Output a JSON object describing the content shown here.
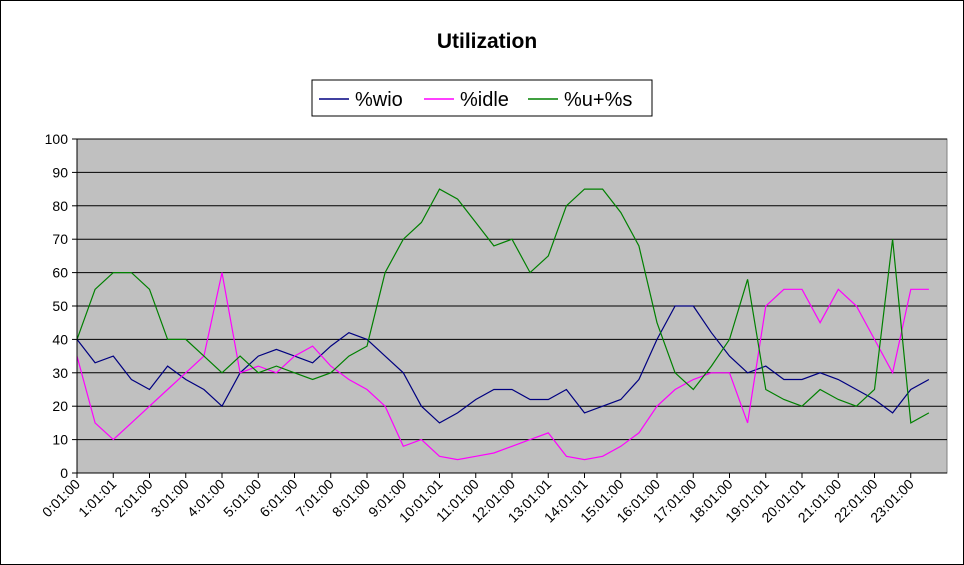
{
  "chart_data": {
    "type": "line",
    "title": "Utilization",
    "xlabel": "",
    "ylabel": "",
    "ylim": [
      0,
      100
    ],
    "yticks": [
      0,
      10,
      20,
      30,
      40,
      50,
      60,
      70,
      80,
      90,
      100
    ],
    "xticks": [
      "0:01:00",
      "1:01:01",
      "2:01:00",
      "3:01:00",
      "4:01:00",
      "5:01:00",
      "6:01:00",
      "7:01:00",
      "8:01:00",
      "9:01:00",
      "10:01:01",
      "11:01:00",
      "12:01:00",
      "13:01:01",
      "14:01:01",
      "15:01:00",
      "16:01:00",
      "17:01:00",
      "18:01:00",
      "19:01:01",
      "20:01:01",
      "21:01:00",
      "22:01:00",
      "23:01:00"
    ],
    "grid": true,
    "legend_position": "top-center",
    "plot_background": "#C0C0C0",
    "series": [
      {
        "name": "%wio",
        "color": "#000080",
        "x": [
          "0:01:00",
          "0:31:00",
          "1:01:01",
          "1:31:00",
          "2:01:00",
          "2:31:00",
          "3:01:00",
          "3:31:00",
          "4:01:00",
          "4:31:00",
          "5:01:00",
          "5:31:00",
          "6:01:00",
          "6:31:00",
          "7:01:00",
          "7:31:00",
          "8:01:00",
          "8:31:00",
          "9:01:00",
          "9:31:00",
          "10:01:01",
          "10:31:00",
          "11:01:00",
          "11:31:00",
          "12:01:00",
          "12:31:00",
          "13:01:01",
          "13:31:00",
          "14:01:01",
          "14:31:00",
          "15:01:00",
          "15:31:00",
          "16:01:00",
          "16:31:00",
          "17:01:00",
          "17:31:00",
          "18:01:00",
          "18:31:00",
          "19:01:01",
          "19:31:00",
          "20:01:01",
          "20:31:00",
          "21:01:00",
          "21:31:00",
          "22:01:00",
          "22:31:00",
          "23:01:00",
          "23:31:00"
        ],
        "values": [
          40,
          33,
          35,
          28,
          25,
          32,
          28,
          25,
          20,
          30,
          35,
          37,
          35,
          33,
          38,
          42,
          40,
          35,
          30,
          20,
          15,
          18,
          22,
          25,
          25,
          22,
          22,
          25,
          18,
          20,
          22,
          28,
          40,
          50,
          50,
          42,
          35,
          30,
          32,
          28,
          28,
          30,
          28,
          25,
          22,
          18,
          25,
          28
        ]
      },
      {
        "name": "%idle",
        "color": "#FF00FF",
        "x": [
          "0:01:00",
          "0:31:00",
          "1:01:01",
          "1:31:00",
          "2:01:00",
          "2:31:00",
          "3:01:00",
          "3:31:00",
          "4:01:00",
          "4:31:00",
          "5:01:00",
          "5:31:00",
          "6:01:00",
          "6:31:00",
          "7:01:00",
          "7:31:00",
          "8:01:00",
          "8:31:00",
          "9:01:00",
          "9:31:00",
          "10:01:01",
          "10:31:00",
          "11:01:00",
          "11:31:00",
          "12:01:00",
          "12:31:00",
          "13:01:01",
          "13:31:00",
          "14:01:01",
          "14:31:00",
          "15:01:00",
          "15:31:00",
          "16:01:00",
          "16:31:00",
          "17:01:00",
          "17:31:00",
          "18:01:00",
          "18:31:00",
          "19:01:01",
          "19:31:00",
          "20:01:01",
          "20:31:00",
          "21:01:00",
          "21:31:00",
          "22:01:00",
          "22:31:00",
          "23:01:00",
          "23:31:00"
        ],
        "values": [
          35,
          15,
          10,
          15,
          20,
          25,
          30,
          35,
          60,
          30,
          32,
          30,
          35,
          38,
          32,
          28,
          25,
          20,
          8,
          10,
          5,
          4,
          5,
          6,
          8,
          10,
          12,
          5,
          4,
          5,
          8,
          12,
          20,
          25,
          28,
          30,
          30,
          15,
          50,
          55,
          55,
          45,
          55,
          50,
          40,
          30,
          55,
          55
        ]
      },
      {
        "name": "%u+%s",
        "color": "#008000",
        "x": [
          "0:01:00",
          "0:31:00",
          "1:01:01",
          "1:31:00",
          "2:01:00",
          "2:31:00",
          "3:01:00",
          "3:31:00",
          "4:01:00",
          "4:31:00",
          "5:01:00",
          "5:31:00",
          "6:01:00",
          "6:31:00",
          "7:01:00",
          "7:31:00",
          "8:01:00",
          "8:31:00",
          "9:01:00",
          "9:31:00",
          "10:01:01",
          "10:31:00",
          "11:01:00",
          "11:31:00",
          "12:01:00",
          "12:31:00",
          "13:01:01",
          "13:31:00",
          "14:01:01",
          "14:31:00",
          "15:01:00",
          "15:31:00",
          "16:01:00",
          "16:31:00",
          "17:01:00",
          "17:31:00",
          "18:01:00",
          "18:31:00",
          "19:01:01",
          "19:31:00",
          "20:01:01",
          "20:31:00",
          "21:01:00",
          "21:31:00",
          "22:01:00",
          "22:31:00",
          "23:01:00",
          "23:31:00"
        ],
        "values": [
          40,
          55,
          60,
          60,
          55,
          40,
          40,
          35,
          30,
          35,
          30,
          32,
          30,
          28,
          30,
          35,
          38,
          60,
          70,
          75,
          85,
          82,
          75,
          68,
          70,
          60,
          65,
          80,
          85,
          85,
          78,
          68,
          45,
          30,
          25,
          32,
          40,
          58,
          25,
          22,
          20,
          25,
          22,
          20,
          25,
          70,
          15,
          18
        ]
      }
    ]
  }
}
